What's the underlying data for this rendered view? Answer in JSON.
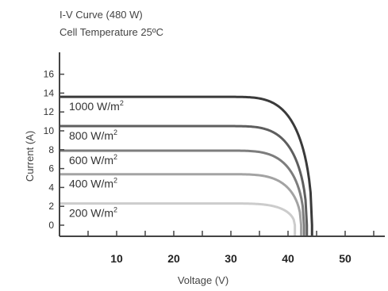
{
  "chart_data": {
    "type": "line",
    "title": "I-V Curve  (480 W)",
    "subtitle": "Cell Temperature 25ºC",
    "xlabel": "Voltage (V)",
    "ylabel": "Current (A)",
    "xlim": [
      0,
      60
    ],
    "ylim": [
      -2,
      17
    ],
    "x_ticks": [
      10,
      20,
      30,
      40,
      50
    ],
    "y_ticks": [
      0,
      2,
      4,
      6,
      8,
      10,
      12,
      14,
      16
    ],
    "grid": false,
    "series": [
      {
        "name": "1000 W/m²",
        "label_main": "1000 W/m",
        "isc": 13.6,
        "knee_v": 29,
        "voc": 44.2,
        "color": "#3a3a3a"
      },
      {
        "name": "800 W/m²",
        "label_main": "800 W/m",
        "isc": 10.5,
        "knee_v": 29,
        "voc": 43.3,
        "color": "#5e5e5e"
      },
      {
        "name": "600 W/m²",
        "label_main": "600 W/m",
        "isc": 7.9,
        "knee_v": 29,
        "voc": 42.8,
        "color": "#7d7d7d"
      },
      {
        "name": "400 W/m²",
        "label_main": "400 W/m",
        "isc": 5.4,
        "knee_v": 29,
        "voc": 42.3,
        "color": "#a3a3a3"
      },
      {
        "name": "200 W/m²",
        "label_main": "200 W/m",
        "isc": 2.3,
        "knee_v": 29,
        "voc": 41.2,
        "color": "#cccccc"
      }
    ]
  }
}
